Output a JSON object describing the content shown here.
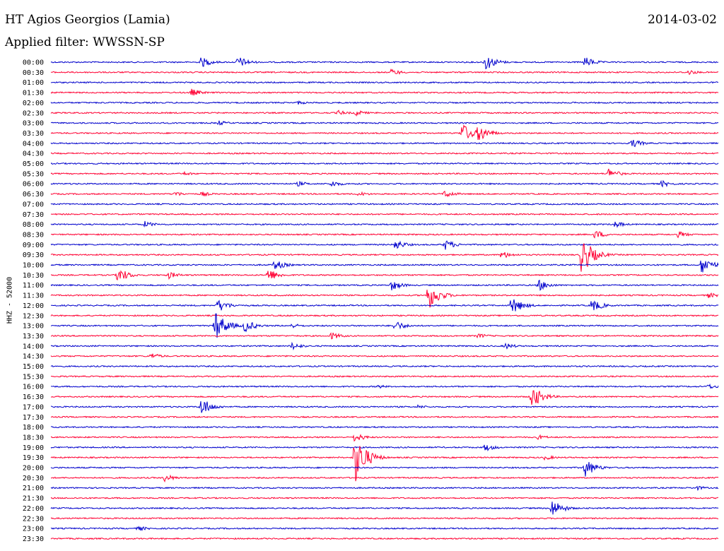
{
  "header": {
    "station": "HT Agios Georgios (Lamia)",
    "date": "2014-03-02",
    "filter": "Applied filter: WWSSN-SP"
  },
  "chart_data": {
    "type": "line",
    "title": "HT Agios Georgios (Lamia)",
    "ylabel": "HHZ - 52000",
    "colors": [
      "#0000cc",
      "#ff0033"
    ],
    "row_labels": [
      "00:00",
      "00:30",
      "01:00",
      "01:30",
      "02:00",
      "02:30",
      "03:00",
      "03:30",
      "04:00",
      "04:30",
      "05:00",
      "05:30",
      "06:00",
      "06:30",
      "07:00",
      "07:30",
      "08:00",
      "08:30",
      "09:00",
      "09:30",
      "10:00",
      "10:30",
      "11:00",
      "11:30",
      "12:00",
      "12:30",
      "13:00",
      "13:30",
      "14:00",
      "14:30",
      "15:00",
      "15:30",
      "16:00",
      "16:30",
      "17:00",
      "17:30",
      "18:00",
      "18:30",
      "19:00",
      "19:30",
      "20:00",
      "20:30",
      "21:00",
      "21:30",
      "22:00",
      "22:30",
      "23:00",
      "23:30"
    ],
    "events": [
      {
        "row": 0,
        "t": 0.225,
        "amp": 8
      },
      {
        "row": 0,
        "t": 0.28,
        "amp": 9
      },
      {
        "row": 0,
        "t": 0.65,
        "amp": 13
      },
      {
        "row": 0,
        "t": 0.8,
        "amp": 8
      },
      {
        "row": 1,
        "t": 0.51,
        "amp": 5
      },
      {
        "row": 1,
        "t": 0.955,
        "amp": 4
      },
      {
        "row": 3,
        "t": 0.21,
        "amp": 6
      },
      {
        "row": 4,
        "t": 0.37,
        "amp": 3
      },
      {
        "row": 5,
        "t": 0.43,
        "amp": 4
      },
      {
        "row": 5,
        "t": 0.455,
        "amp": 5
      },
      {
        "row": 6,
        "t": 0.25,
        "amp": 4
      },
      {
        "row": 7,
        "t": 0.615,
        "amp": 16
      },
      {
        "row": 7,
        "t": 0.64,
        "amp": 14
      },
      {
        "row": 8,
        "t": 0.87,
        "amp": 7
      },
      {
        "row": 11,
        "t": 0.2,
        "amp": 3
      },
      {
        "row": 11,
        "t": 0.835,
        "amp": 8
      },
      {
        "row": 12,
        "t": 0.37,
        "amp": 4
      },
      {
        "row": 12,
        "t": 0.42,
        "amp": 5
      },
      {
        "row": 12,
        "t": 0.915,
        "amp": 5
      },
      {
        "row": 13,
        "t": 0.185,
        "amp": 4
      },
      {
        "row": 13,
        "t": 0.225,
        "amp": 4
      },
      {
        "row": 13,
        "t": 0.46,
        "amp": 4
      },
      {
        "row": 13,
        "t": 0.59,
        "amp": 6
      },
      {
        "row": 16,
        "t": 0.14,
        "amp": 5
      },
      {
        "row": 16,
        "t": 0.845,
        "amp": 5
      },
      {
        "row": 17,
        "t": 0.815,
        "amp": 7
      },
      {
        "row": 17,
        "t": 0.94,
        "amp": 5
      },
      {
        "row": 18,
        "t": 0.515,
        "amp": 8
      },
      {
        "row": 18,
        "t": 0.59,
        "amp": 8
      },
      {
        "row": 19,
        "t": 0.675,
        "amp": 6
      },
      {
        "row": 19,
        "t": 0.795,
        "amp": 30
      },
      {
        "row": 20,
        "t": 0.335,
        "amp": 8
      },
      {
        "row": 20,
        "t": 0.975,
        "amp": 14
      },
      {
        "row": 21,
        "t": 0.1,
        "amp": 12
      },
      {
        "row": 21,
        "t": 0.175,
        "amp": 6
      },
      {
        "row": 21,
        "t": 0.325,
        "amp": 10
      },
      {
        "row": 22,
        "t": 0.51,
        "amp": 8
      },
      {
        "row": 22,
        "t": 0.73,
        "amp": 9
      },
      {
        "row": 23,
        "t": 0.565,
        "amp": 22
      },
      {
        "row": 23,
        "t": 0.985,
        "amp": 4
      },
      {
        "row": 24,
        "t": 0.25,
        "amp": 10
      },
      {
        "row": 24,
        "t": 0.69,
        "amp": 14
      },
      {
        "row": 24,
        "t": 0.81,
        "amp": 10
      },
      {
        "row": 26,
        "t": 0.245,
        "amp": 24
      },
      {
        "row": 26,
        "t": 0.29,
        "amp": 10
      },
      {
        "row": 26,
        "t": 0.36,
        "amp": 4
      },
      {
        "row": 26,
        "t": 0.515,
        "amp": 8
      },
      {
        "row": 27,
        "t": 0.42,
        "amp": 6
      },
      {
        "row": 27,
        "t": 0.64,
        "amp": 4
      },
      {
        "row": 28,
        "t": 0.36,
        "amp": 6
      },
      {
        "row": 28,
        "t": 0.68,
        "amp": 5
      },
      {
        "row": 29,
        "t": 0.15,
        "amp": 5
      },
      {
        "row": 32,
        "t": 0.49,
        "amp": 3
      },
      {
        "row": 32,
        "t": 0.985,
        "amp": 4
      },
      {
        "row": 33,
        "t": 0.72,
        "amp": 18
      },
      {
        "row": 34,
        "t": 0.225,
        "amp": 14
      },
      {
        "row": 34,
        "t": 0.55,
        "amp": 3
      },
      {
        "row": 37,
        "t": 0.455,
        "amp": 7
      },
      {
        "row": 37,
        "t": 0.73,
        "amp": 4
      },
      {
        "row": 38,
        "t": 0.65,
        "amp": 6
      },
      {
        "row": 39,
        "t": 0.455,
        "amp": 40
      },
      {
        "row": 39,
        "t": 0.74,
        "amp": 4
      },
      {
        "row": 40,
        "t": 0.8,
        "amp": 14
      },
      {
        "row": 41,
        "t": 0.17,
        "amp": 6
      },
      {
        "row": 42,
        "t": 0.965,
        "amp": 4
      },
      {
        "row": 44,
        "t": 0.75,
        "amp": 14
      },
      {
        "row": 46,
        "t": 0.13,
        "amp": 4
      }
    ]
  }
}
